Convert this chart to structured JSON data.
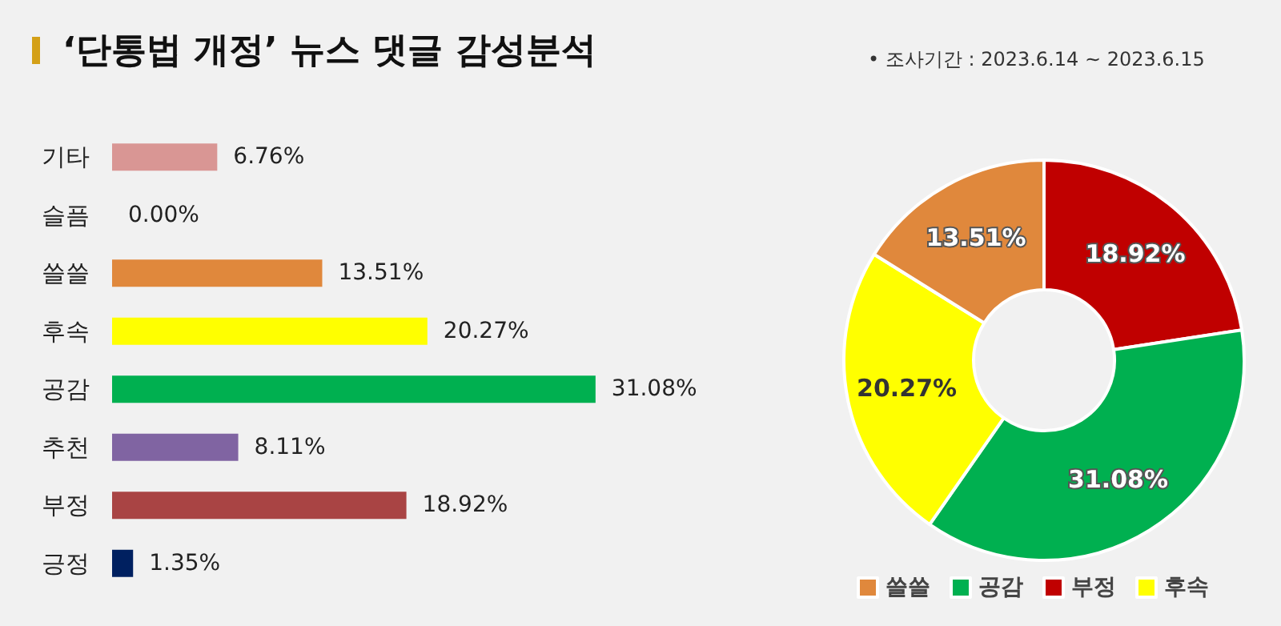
{
  "chart_data": [
    {
      "type": "bar",
      "orientation": "horizontal",
      "title": "‘단통법 개정’ 뉴스 댓글 감성분석",
      "categories": [
        "기타",
        "슬픔",
        "쓸쓸",
        "후속",
        "공감",
        "추천",
        "부정",
        "긍정"
      ],
      "values": [
        6.76,
        0.0,
        13.51,
        20.27,
        31.08,
        8.11,
        18.92,
        1.35
      ],
      "colors": [
        "#d99694",
        "#d99694",
        "#e0883c",
        "#ffff00",
        "#00b050",
        "#8064a2",
        "#a94444",
        "#002060"
      ],
      "value_labels": [
        "6.76%",
        "0.00%",
        "13.51%",
        "20.27%",
        "31.08%",
        "8.11%",
        "18.92%",
        "1.35%"
      ],
      "grid": false,
      "legend": false
    },
    {
      "type": "donut",
      "subtitle": "• 조사기간 : 2023.6.14 ~ 2023.6.15",
      "categories": [
        "부정",
        "공감",
        "후속",
        "쓸쓸"
      ],
      "values": [
        18.92,
        31.08,
        20.27,
        13.51
      ],
      "colors": [
        "#c00000",
        "#00b050",
        "#ffff00",
        "#e0883c"
      ],
      "value_labels": [
        "18.92%",
        "31.08%",
        "20.27%",
        "13.51%"
      ],
      "legend": "bottom"
    }
  ]
}
